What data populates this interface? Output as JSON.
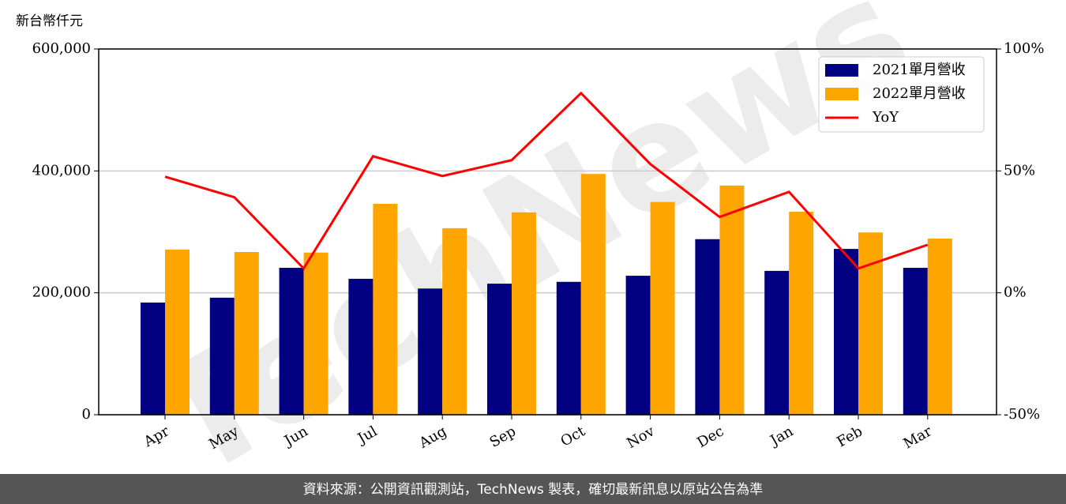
{
  "chart_data": {
    "type": "bar_line",
    "y_label": "新台幣仟元",
    "watermark": "TechNews",
    "footer": "資料來源：公開資訊觀測站，TechNews 製表，確切最新訊息以原站公告為準",
    "categories": [
      "Apr",
      "May",
      "Jun",
      "Jul",
      "Aug",
      "Sep",
      "Oct",
      "Nov",
      "Dec",
      "Jan",
      "Feb",
      "Mar"
    ],
    "series": [
      {
        "name": "2021單月營收",
        "color": "#000080",
        "kind": "bar",
        "values": [
          184000,
          192000,
          241000,
          223000,
          207000,
          215000,
          218000,
          228000,
          288000,
          236000,
          272000,
          241000
        ]
      },
      {
        "name": "2022單月營收",
        "color": "#ffa500",
        "kind": "bar",
        "values": [
          271000,
          267000,
          266000,
          346000,
          306000,
          332000,
          395000,
          349000,
          376000,
          333000,
          299000,
          289000
        ]
      },
      {
        "name": "YoY",
        "color": "#ff0000",
        "kind": "line",
        "axis": "y2",
        "values": [
          47.6,
          39.2,
          10.0,
          56.0,
          47.9,
          54.4,
          81.9,
          52.8,
          31.1,
          41.4,
          10.0,
          19.7
        ]
      }
    ],
    "ylim": [
      0,
      600000
    ],
    "yticks": [
      0,
      {
        "value": 200000,
        "label": "200,000"
      },
      {
        "value": 400000,
        "label": "400,000"
      },
      {
        "value": 600000,
        "label": "600,000"
      }
    ],
    "y2lim": [
      -50,
      100
    ],
    "y2ticks": [
      {
        "value": -50,
        "label": "-50%"
      },
      {
        "value": 0,
        "label": "0%"
      },
      {
        "value": 50,
        "label": "50%"
      },
      {
        "value": 100,
        "label": "100%"
      }
    ],
    "grid": true,
    "legend": "upper right"
  }
}
